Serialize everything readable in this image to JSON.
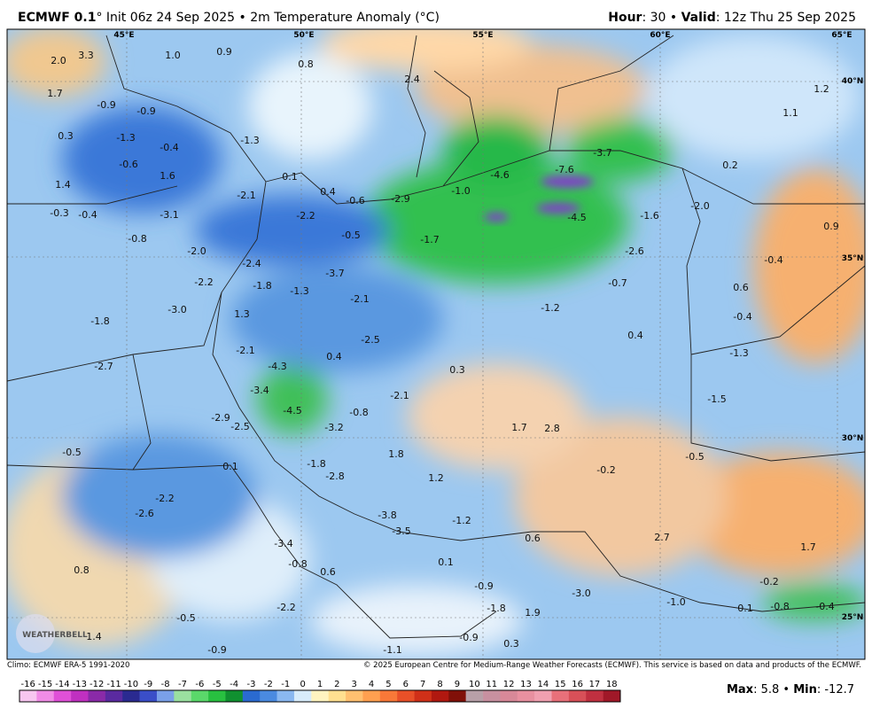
{
  "header": {
    "title_bold": "ECMWF 0.1",
    "title_rest": "° Init 06z 24 Sep 2025 • 2m Temperature Anomaly (°C)",
    "hour_label": "Hour",
    "hour_rest": ": 30 • ",
    "valid_label": "Valid",
    "valid_rest": ": 12z Thu 25 Sep 2025"
  },
  "map": {
    "lon_labels": [
      "45°E",
      "50°E",
      "55°E",
      "60°E",
      "65°E"
    ],
    "lat_labels": [
      "40°N",
      "35°N",
      "30°N",
      "25°N"
    ],
    "values": [
      "2.0",
      "3.3",
      "1.0",
      "0.9",
      "0.8",
      "1.7",
      "-0.9",
      "-0.9",
      "2.4",
      "1.2",
      "1.1",
      "0.3",
      "-1.3",
      "-0.4",
      "-1.3",
      "-3.7",
      "-0.6",
      "1.6",
      "0.1",
      "-4.6",
      "-7.6",
      "0.2",
      "1.4",
      "0.4",
      "-0.6",
      "-2.9",
      "-1.0",
      "-2.1",
      "-0.3",
      "-0.4",
      "-3.1",
      "-2.2",
      "-4.5",
      "-1.6",
      "-2.0",
      "0.9",
      "-0.8",
      "-0.5",
      "-1.7",
      "-2.0",
      "-2.6",
      "-0.4",
      "-2.4",
      "-0.7",
      "0.6",
      "-2.2",
      "-1.8",
      "-1.3",
      "-3.7",
      "-2.1",
      "-1.2",
      "-3.0",
      "1.3",
      "-1.8",
      "-0.4",
      "0.4",
      "-2.5",
      "-1.3",
      "-2.7",
      "-2.1",
      "0.4",
      "0.3",
      "-4.3",
      "-3.4",
      "-2.1",
      "-1.5",
      "-4.5",
      "-0.8",
      "-2.9",
      "-2.5",
      "-3.2",
      "1.7",
      "2.8",
      "-0.5",
      "0.1",
      "-1.8",
      "1.8",
      "-0.5",
      "-2.8",
      "1.2",
      "-0.2",
      "-2.2",
      "-2.6",
      "-3.8",
      "-1.2",
      "-3.5",
      "0.6",
      "2.7",
      "-3.4",
      "1.7",
      "0.8",
      "-0.8",
      "0.6",
      "0.1",
      "-0.9",
      "-0.2",
      "-3.0",
      "-1.0",
      "-2.2",
      "-1.8",
      "1.9",
      "0.1",
      "-0.8",
      "-0.4",
      "-0.5",
      "1.4",
      "-0.9",
      "0.3",
      "-0.9",
      "-1.1"
    ],
    "logo": "WEATHERBELL"
  },
  "footer": {
    "climo": "Climo: ECMWF ERA-5 1991-2020",
    "copyright": "© 2025 European Centre for Medium-Range Weather Forecasts (ECMWF). This service is based on data and products of the ECMWF.",
    "max_label": "Max",
    "max_rest": ": 5.8 • ",
    "min_label": "Min",
    "min_rest": ": -12.7"
  },
  "colorbar": {
    "ticks": [
      -16,
      -15,
      -14,
      -13,
      -12,
      -11,
      -10,
      -9,
      -8,
      -7,
      -6,
      -5,
      -4,
      -3,
      -2,
      -1,
      0,
      1,
      2,
      3,
      4,
      5,
      6,
      7,
      8,
      9,
      10,
      11,
      12,
      13,
      14,
      15,
      16,
      17,
      18
    ],
    "colors": [
      "#f7c6f0",
      "#f08ce6",
      "#e050d8",
      "#c030c0",
      "#8a2aa8",
      "#5a2aa0",
      "#2a2a90",
      "#3a4ec8",
      "#7aa0e8",
      "#9ae0a0",
      "#5ad86a",
      "#28c040",
      "#109030",
      "#2a6ad0",
      "#4a8ae0",
      "#8ab8f0",
      "#d8ecfa",
      "#fff4c0",
      "#ffe090",
      "#ffc070",
      "#ffa050",
      "#f87838",
      "#e85028",
      "#d03018",
      "#b01810",
      "#801008",
      "#b8a0a8",
      "#c890a0",
      "#d88898",
      "#e890a0",
      "#f0a0b0",
      "#e8707a",
      "#d85058",
      "#c03040",
      "#a01828"
    ]
  }
}
